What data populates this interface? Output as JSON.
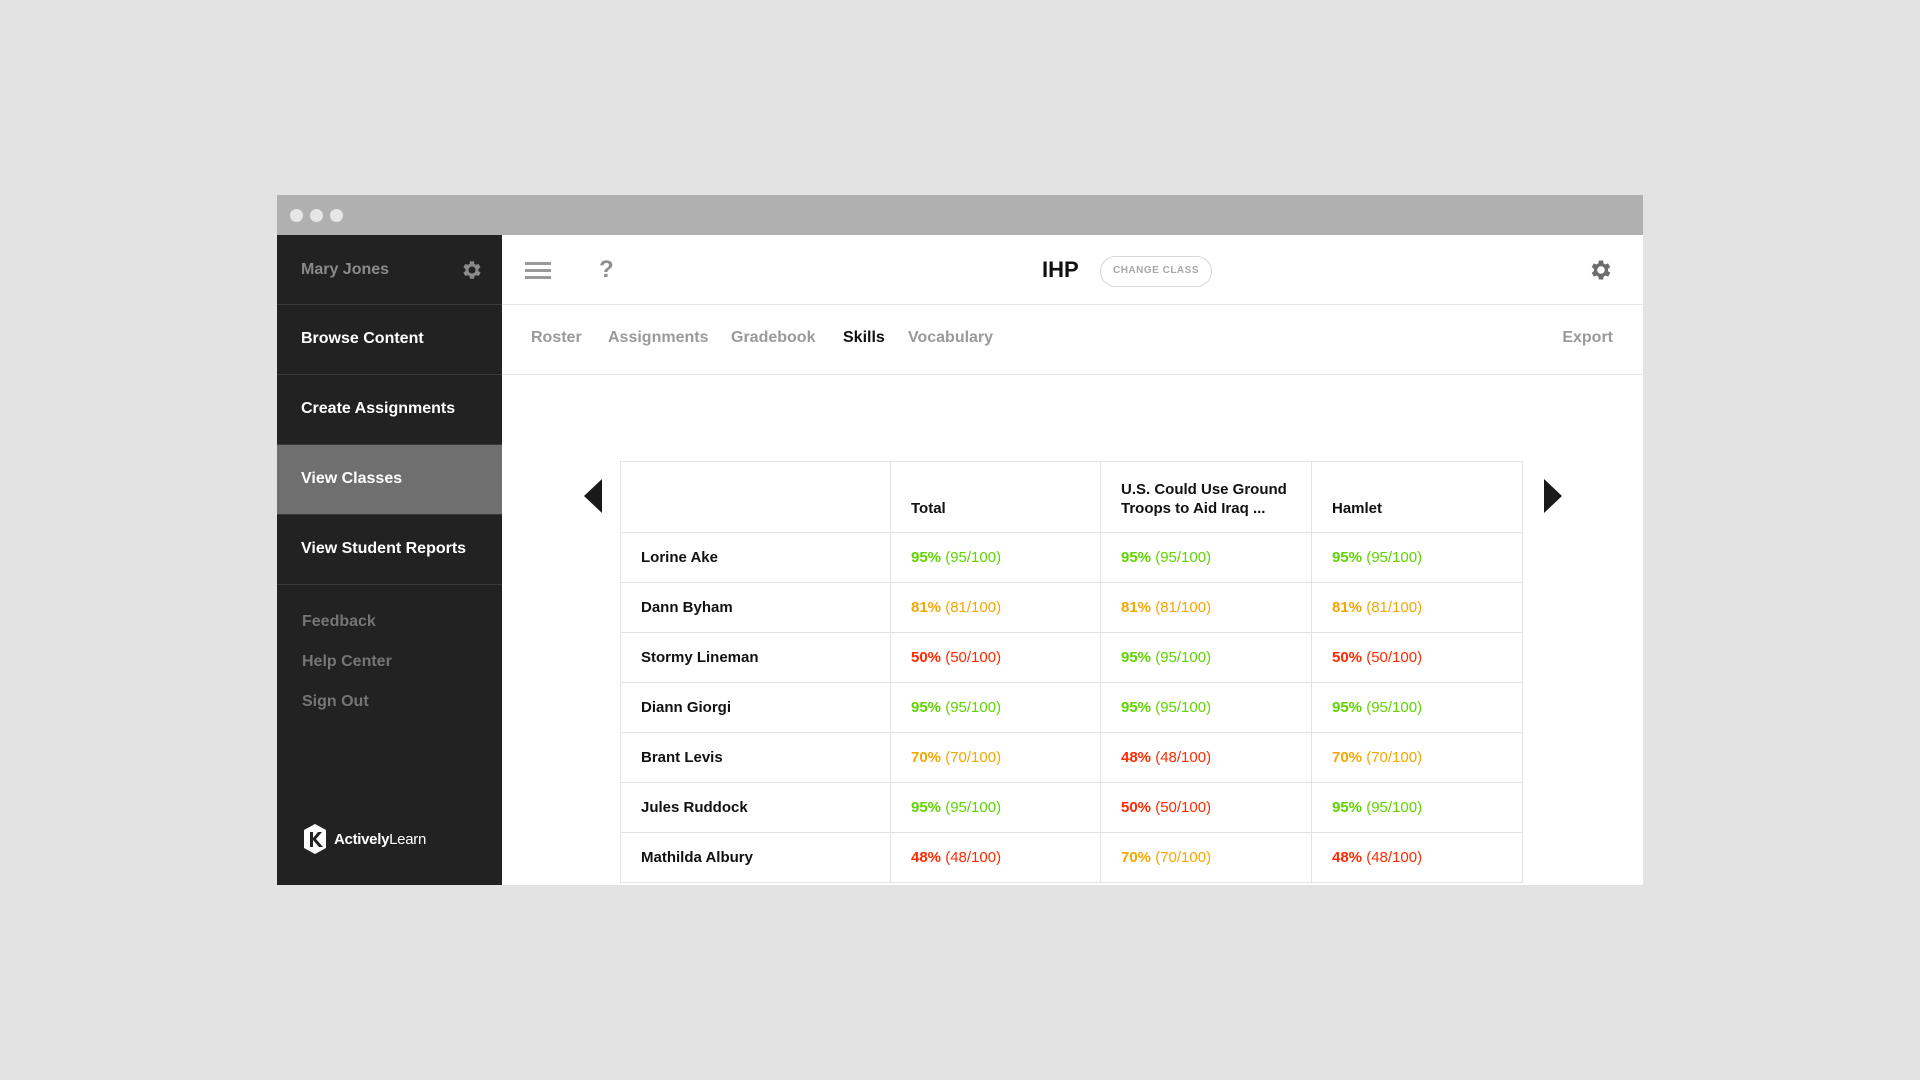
{
  "sidebar": {
    "user_name": "Mary Jones",
    "items": [
      {
        "label": "Browse Content"
      },
      {
        "label": "Create Assignments"
      },
      {
        "label": "View Classes"
      },
      {
        "label": "View Student Reports"
      }
    ],
    "active_item": "View Classes",
    "links": [
      {
        "label": "Feedback"
      },
      {
        "label": "Help Center"
      },
      {
        "label": "Sign Out"
      }
    ],
    "brand": {
      "bold": "Actively",
      "regular": "Learn"
    }
  },
  "topbar": {
    "help_label": "?",
    "class_name": "IHP",
    "change_class_label": "CHANGE CLASS"
  },
  "tabs": [
    {
      "label": "Roster"
    },
    {
      "label": "Assignments"
    },
    {
      "label": "Gradebook"
    },
    {
      "label": "Skills"
    },
    {
      "label": "Vocabulary"
    }
  ],
  "active_tab": "Skills",
  "export_label": "Export",
  "table": {
    "columns": [
      "",
      "Total",
      "U.S. Could Use Ground Troops to Aid Iraq ...",
      "Hamlet"
    ],
    "rows": [
      {
        "student": "Lorine Ake",
        "scores": [
          {
            "pct": "95%",
            "raw": "(95/100)",
            "status": "green"
          },
          {
            "pct": "95%",
            "raw": "(95/100)",
            "status": "green"
          },
          {
            "pct": "95%",
            "raw": "(95/100)",
            "status": "green"
          }
        ]
      },
      {
        "student": "Dann Byham",
        "scores": [
          {
            "pct": "81%",
            "raw": "(81/100)",
            "status": "orange"
          },
          {
            "pct": "81%",
            "raw": "(81/100)",
            "status": "orange"
          },
          {
            "pct": "81%",
            "raw": "(81/100)",
            "status": "orange"
          }
        ]
      },
      {
        "student": "Stormy Lineman",
        "scores": [
          {
            "pct": "50%",
            "raw": "(50/100)",
            "status": "red"
          },
          {
            "pct": "95%",
            "raw": "(95/100)",
            "status": "green"
          },
          {
            "pct": "50%",
            "raw": "(50/100)",
            "status": "red"
          }
        ]
      },
      {
        "student": "Diann Giorgi",
        "scores": [
          {
            "pct": "95%",
            "raw": "(95/100)",
            "status": "green"
          },
          {
            "pct": "95%",
            "raw": "(95/100)",
            "status": "green"
          },
          {
            "pct": "95%",
            "raw": "(95/100)",
            "status": "green"
          }
        ]
      },
      {
        "student": "Brant Levis",
        "scores": [
          {
            "pct": "70%",
            "raw": "(70/100)",
            "status": "orange"
          },
          {
            "pct": "48%",
            "raw": "(48/100)",
            "status": "red"
          },
          {
            "pct": "70%",
            "raw": "(70/100)",
            "status": "orange"
          }
        ]
      },
      {
        "student": "Jules Ruddock",
        "scores": [
          {
            "pct": "95%",
            "raw": "(95/100)",
            "status": "green"
          },
          {
            "pct": "50%",
            "raw": "(50/100)",
            "status": "red"
          },
          {
            "pct": "95%",
            "raw": "(95/100)",
            "status": "green"
          }
        ]
      },
      {
        "student": "Mathilda Albury",
        "scores": [
          {
            "pct": "48%",
            "raw": "(48/100)",
            "status": "red"
          },
          {
            "pct": "70%",
            "raw": "(70/100)",
            "status": "orange"
          },
          {
            "pct": "48%",
            "raw": "(48/100)",
            "status": "red"
          }
        ]
      }
    ]
  },
  "colors": {
    "green": "#5fd400",
    "orange": "#f5a600",
    "red": "#ff2a00",
    "sidebar_bg": "#222222",
    "active_nav_bg": "#6f6f6f"
  },
  "icons": [
    "gear-icon",
    "hamburger-icon",
    "help-icon",
    "left-arrow-icon",
    "right-arrow-icon",
    "actively-learn-logo"
  ]
}
